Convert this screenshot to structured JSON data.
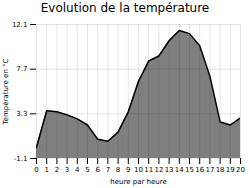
{
  "chart_data": {
    "type": "area",
    "title": "Evolution de la température",
    "xlabel": "heure par heure",
    "ylabel": "Température en °C",
    "x": [
      0,
      1,
      2,
      3,
      4,
      5,
      6,
      7,
      8,
      9,
      10,
      11,
      12,
      13,
      14,
      15,
      16,
      17,
      18,
      19,
      20
    ],
    "values": [
      0.0,
      3.6,
      3.5,
      3.2,
      2.8,
      2.2,
      0.8,
      0.6,
      1.5,
      3.5,
      6.5,
      8.5,
      9.0,
      10.5,
      11.5,
      11.2,
      10.0,
      7.0,
      2.5,
      2.2,
      2.9
    ],
    "xlim": [
      0,
      20
    ],
    "xticks": [
      0,
      1,
      2,
      3,
      4,
      5,
      6,
      7,
      8,
      9,
      10,
      11,
      12,
      13,
      14,
      15,
      16,
      17,
      18,
      19,
      20
    ],
    "ylim": [
      -1.1,
      12.1
    ],
    "yticks": [
      -1.1,
      3.3,
      7.7,
      12.1
    ],
    "grid": true
  }
}
